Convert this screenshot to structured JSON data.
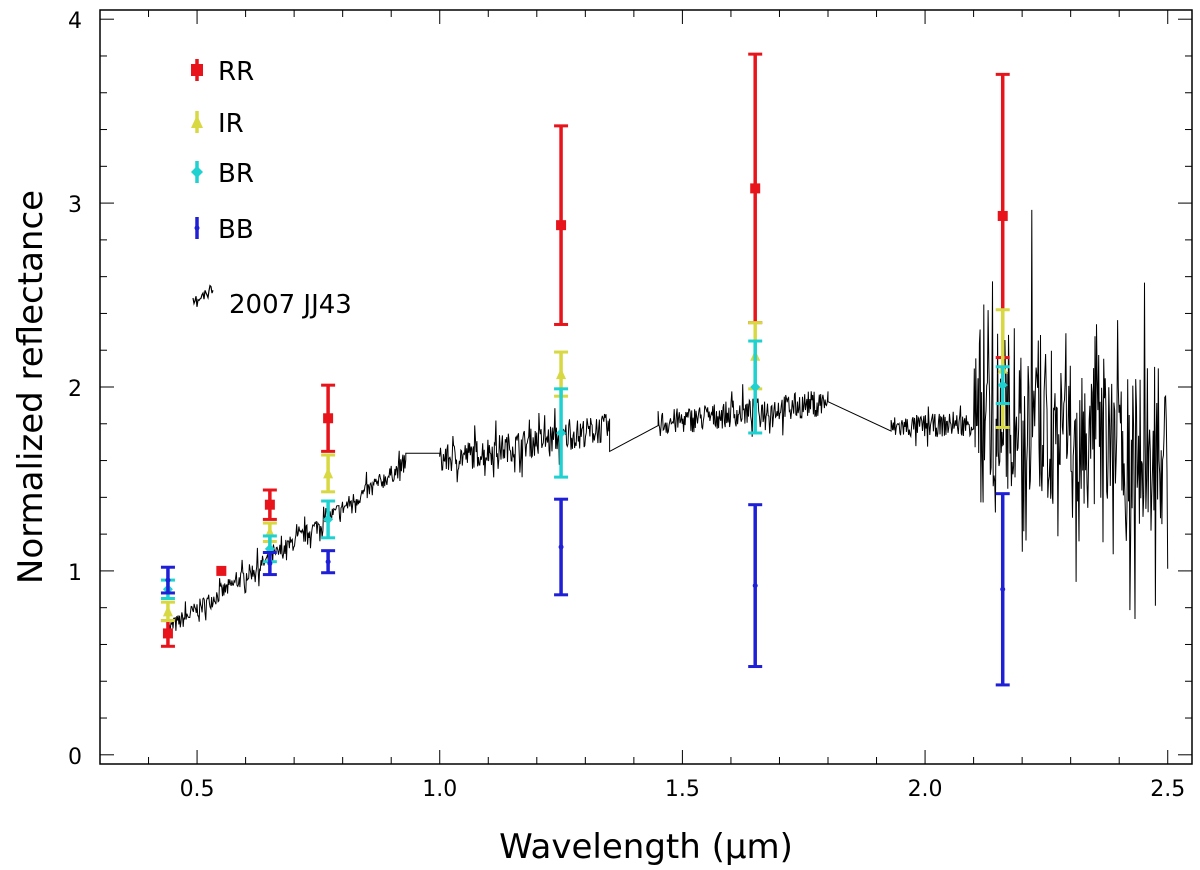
{
  "chart_data": {
    "type": "scatter",
    "title": "",
    "xlabel": "Wavelength (µm)",
    "ylabel": "Normalized reflectance",
    "xlim": [
      0.3,
      2.55
    ],
    "ylim": [
      -0.05,
      4.05
    ],
    "xticks": [
      0.5,
      1.0,
      1.5,
      2.0,
      2.5
    ],
    "xtick_labels": [
      "0.5",
      "1.0",
      "1.5",
      "2.0",
      "2.5"
    ],
    "yticks": [
      0,
      1,
      2,
      3,
      4
    ],
    "ytick_labels": [
      "0",
      "1",
      "2",
      "3",
      "4"
    ],
    "grid": false,
    "legend_position": "top-left",
    "series": [
      {
        "name": "RR",
        "color": "#e8141c",
        "marker": "square",
        "points": [
          {
            "x": 0.44,
            "y": 0.66,
            "err": 0.07
          },
          {
            "x": 0.55,
            "y": 1.0,
            "err": 0.0
          },
          {
            "x": 0.65,
            "y": 1.36,
            "err": 0.08
          },
          {
            "x": 0.77,
            "y": 1.83,
            "err": 0.18
          },
          {
            "x": 1.25,
            "y": 2.88,
            "err": 0.54
          },
          {
            "x": 1.65,
            "y": 3.08,
            "err": 0.73
          },
          {
            "x": 2.16,
            "y": 2.93,
            "err": 0.77
          }
        ]
      },
      {
        "name": "IR",
        "color": "#d8d843",
        "marker": "triangle",
        "points": [
          {
            "x": 0.44,
            "y": 0.78,
            "err": 0.05
          },
          {
            "x": 0.65,
            "y": 1.21,
            "err": 0.05
          },
          {
            "x": 0.77,
            "y": 1.53,
            "err": 0.1
          },
          {
            "x": 1.25,
            "y": 2.07,
            "err": 0.12
          },
          {
            "x": 1.65,
            "y": 2.17,
            "err": 0.18
          },
          {
            "x": 2.16,
            "y": 2.1,
            "err": 0.32
          }
        ]
      },
      {
        "name": "BR",
        "color": "#1fd1d1",
        "marker": "diamond",
        "points": [
          {
            "x": 0.44,
            "y": 0.9,
            "err": 0.05
          },
          {
            "x": 0.65,
            "y": 1.12,
            "err": 0.07
          },
          {
            "x": 0.77,
            "y": 1.28,
            "err": 0.1
          },
          {
            "x": 1.25,
            "y": 1.75,
            "err": 0.24
          },
          {
            "x": 1.65,
            "y": 2.0,
            "err": 0.25
          },
          {
            "x": 2.16,
            "y": 2.01,
            "err": 0.1
          }
        ]
      },
      {
        "name": "BB",
        "color": "#1f1fd6",
        "marker": "dot",
        "points": [
          {
            "x": 0.44,
            "y": 0.95,
            "err": 0.07
          },
          {
            "x": 0.65,
            "y": 1.04,
            "err": 0.06
          },
          {
            "x": 0.77,
            "y": 1.05,
            "err": 0.06
          },
          {
            "x": 1.25,
            "y": 1.13,
            "err": 0.26
          },
          {
            "x": 1.65,
            "y": 0.92,
            "err": 0.44
          },
          {
            "x": 2.16,
            "y": 0.9,
            "err": 0.52
          }
        ]
      }
    ],
    "spectrum": {
      "name": "2007 JJ43",
      "color": "#000000",
      "segments": [
        {
          "x": [
            0.44,
            0.93
          ],
          "trend": [
            0.68,
            1.58
          ],
          "noise": 0.06
        },
        {
          "x": [
            0.93,
            1.0
          ],
          "trend": [
            1.64,
            1.64
          ],
          "noise": 0.0
        },
        {
          "x": [
            1.0,
            1.35
          ],
          "trend": [
            1.6,
            1.78
          ],
          "noise": 0.1
        },
        {
          "x": [
            1.35,
            1.45
          ],
          "trend": [
            1.65,
            1.79
          ],
          "noise": 0.0
        },
        {
          "x": [
            1.45,
            1.8
          ],
          "trend": [
            1.8,
            1.92
          ],
          "noise": 0.09
        },
        {
          "x": [
            1.8,
            1.93
          ],
          "trend": [
            1.92,
            1.76
          ],
          "noise": 0.0
        },
        {
          "x": [
            1.93,
            2.1
          ],
          "trend": [
            1.78,
            1.8
          ],
          "noise": 0.08
        },
        {
          "x": [
            2.1,
            2.5
          ],
          "trend": [
            1.85,
            1.6
          ],
          "noise": 0.55
        }
      ]
    }
  }
}
